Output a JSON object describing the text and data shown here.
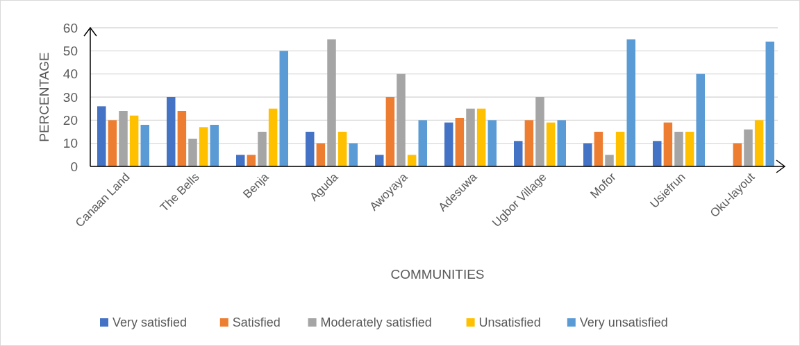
{
  "chart_data": {
    "type": "bar",
    "xlabel": "COMMUNITIES",
    "ylabel": "PERCENTAGE",
    "categories": [
      "Canaan Land",
      "The Bells",
      "Benja",
      "Aguda",
      "Awoyaya",
      "Adesuwa",
      "Ugbor Village",
      "Mofor",
      "Usiefrun",
      "Oku-layout"
    ],
    "series": [
      {
        "name": "Very satisfied",
        "color": "#4472c4",
        "values": [
          26,
          30,
          5,
          15,
          5,
          19,
          11,
          10,
          11,
          0
        ]
      },
      {
        "name": "Satisfied",
        "color": "#ed7d31",
        "values": [
          20,
          24,
          5,
          10,
          30,
          21,
          20,
          15,
          19,
          10
        ]
      },
      {
        "name": "Moderately satisfied",
        "color": "#a5a5a5",
        "values": [
          24,
          12,
          15,
          55,
          40,
          25,
          30,
          5,
          15,
          16
        ]
      },
      {
        "name": "Unsatisfied",
        "color": "#ffc000",
        "values": [
          22,
          17,
          25,
          15,
          5,
          25,
          19,
          15,
          15,
          20
        ]
      },
      {
        "name": "Very unsatisfied",
        "color": "#5b9bd5",
        "values": [
          18,
          18,
          50,
          10,
          20,
          20,
          20,
          55,
          40,
          54
        ]
      }
    ],
    "ylim": [
      0,
      60
    ],
    "yticks": [
      0,
      10,
      20,
      30,
      40,
      50,
      60
    ],
    "grid": "y",
    "legend": "bottom"
  }
}
